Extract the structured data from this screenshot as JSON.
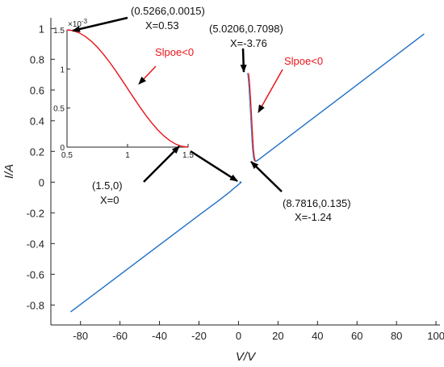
{
  "chart_data": [
    {
      "type": "line",
      "xlabel": "V/V",
      "ylabel": "I/A",
      "xlim": [
        -95,
        102
      ],
      "ylim": [
        -0.93,
        1.07
      ],
      "xticks": [
        -80,
        -60,
        -40,
        -20,
        0,
        20,
        40,
        60,
        80,
        100
      ],
      "xtick_labels": [
        "-80",
        "-60",
        "-40",
        "-20",
        "0",
        "20",
        "40",
        "60",
        "80",
        "100"
      ],
      "yticks": [
        -0.8,
        -0.6,
        -0.4,
        -0.2,
        0,
        0.2,
        0.4,
        0.6,
        0.8,
        1
      ],
      "ytick_labels": [
        "-0.8",
        "-0.6",
        "-0.4",
        "-0.2",
        "0",
        "0.2",
        "0.4",
        "0.6",
        "0.8",
        "1"
      ],
      "grid": false,
      "series_color": "#1f6fc5",
      "highlight_color": "#e8141a",
      "series": [
        {
          "x": [
            -85,
            -20,
            -10,
            -5,
            -2,
            0,
            1,
            1.5
          ],
          "y": [
            -0.845,
            -0.215,
            -0.12,
            -0.07,
            -0.037,
            -0.016,
            -0.005,
            0
          ]
        },
        {
          "x": [
            1.5,
            1.2,
            0.9,
            0.7,
            0.5266
          ],
          "y": [
            0,
            0.0003,
            0.0008,
            0.0012,
            0.0015
          ]
        },
        {
          "x": [
            5.0206,
            5.2,
            5.6,
            6.0,
            6.5,
            7.0,
            7.5,
            8.0,
            8.5,
            8.7816
          ],
          "y": [
            0.7098,
            0.695,
            0.64,
            0.56,
            0.45,
            0.33,
            0.22,
            0.16,
            0.138,
            0.135
          ]
        },
        {
          "x": [
            8.7816,
            10,
            94
          ],
          "y": [
            0.135,
            0.145,
            0.965
          ]
        }
      ],
      "annotations": [
        {
          "text": "(0.5266,0.0015)",
          "color": "#111111"
        },
        {
          "text": "X=0.53",
          "color": "#111111"
        },
        {
          "text": "(1.5,0)",
          "color": "#111111"
        },
        {
          "text": "X=0",
          "color": "#111111"
        },
        {
          "text": "(5.0206,0.7098)",
          "color": "#111111"
        },
        {
          "text": "X=-3.76",
          "color": "#111111"
        },
        {
          "text": "(8.7816,0.135)",
          "color": "#111111"
        },
        {
          "text": "X=-1.24",
          "color": "#111111"
        },
        {
          "text": "Slpoe<0",
          "color": "#e8141a"
        },
        {
          "text": "Slpoe<0",
          "color": "#e8141a"
        }
      ]
    },
    {
      "type": "line",
      "xlim": [
        0.5,
        1.5
      ],
      "ylim": [
        0,
        1.5
      ],
      "y_exponent_label": "×10",
      "y_exponent_power": "-3",
      "xticks": [
        0.5,
        1,
        1.5
      ],
      "xtick_labels": [
        "0.5",
        "1",
        "1.5"
      ],
      "yticks": [
        0,
        0.5,
        1,
        1.5
      ],
      "ytick_labels": [
        "0",
        "0.5",
        "1",
        "1.5"
      ],
      "series_color": "#e8141a",
      "series": [
        {
          "x": [
            0.5,
            0.55,
            0.6,
            0.65,
            0.7,
            0.75,
            0.8,
            0.85,
            0.9,
            0.95,
            1.0,
            1.05,
            1.1,
            1.15,
            1.2,
            1.25,
            1.3,
            1.35,
            1.4,
            1.45,
            1.5
          ],
          "y": [
            1.5,
            1.49,
            1.463,
            1.418,
            1.356,
            1.28,
            1.19,
            1.09,
            0.982,
            0.867,
            0.75,
            0.633,
            0.518,
            0.409,
            0.31,
            0.22,
            0.144,
            0.082,
            0.037,
            0.009,
            0
          ]
        }
      ]
    }
  ]
}
